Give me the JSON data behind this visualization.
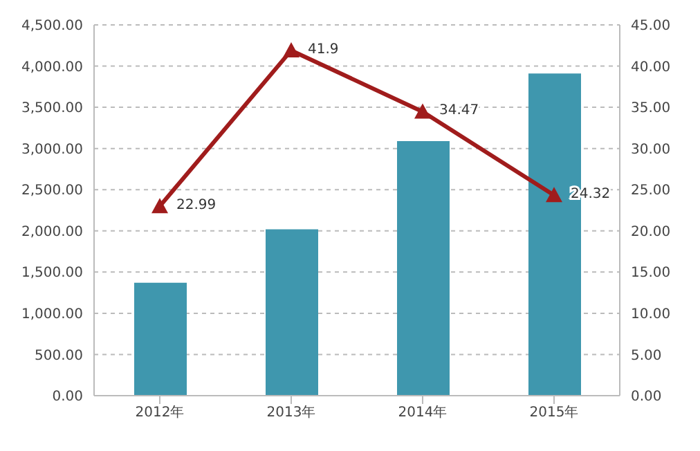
{
  "chart_data": {
    "type": "bar",
    "categories": [
      "2012年",
      "2013年",
      "2014年",
      "2015年"
    ],
    "series": [
      {
        "color": "#3f97ae",
        "values": [
          1370,
          2020,
          3090,
          3910
        ]
      },
      {
        "type": "line",
        "axis": "y2",
        "color": "#a01c1c",
        "values": [
          22.99,
          41.9,
          34.47,
          24.32
        ],
        "value_labels": [
          "22.99",
          "41.9",
          "34.47",
          "24.32"
        ],
        "marker": "triangle"
      }
    ],
    "ylim": [
      0,
      4500
    ],
    "yticks": [
      {
        "value": 0,
        "label": "0.00"
      },
      {
        "value": 500,
        "label": "500.00"
      },
      {
        "value": 1000,
        "label": "1,000.00"
      },
      {
        "value": 1500,
        "label": "1,500.00"
      },
      {
        "value": 2000,
        "label": "2,000.00"
      },
      {
        "value": 2500,
        "label": "2,500.00"
      },
      {
        "value": 3000,
        "label": "3,000.00"
      },
      {
        "value": 3500,
        "label": "3,500.00"
      },
      {
        "value": 4000,
        "label": "4,000.00"
      },
      {
        "value": 4500,
        "label": "4,500.00"
      }
    ],
    "y2lim": [
      0,
      45
    ],
    "y2ticks": [
      {
        "value": 0,
        "label": "0.00"
      },
      {
        "value": 5,
        "label": "5.00"
      },
      {
        "value": 10,
        "label": "10.00"
      },
      {
        "value": 15,
        "label": "15.00"
      },
      {
        "value": 20,
        "label": "20.00"
      },
      {
        "value": 25,
        "label": "25.00"
      },
      {
        "value": 30,
        "label": "30.00"
      },
      {
        "value": 35,
        "label": "35.00"
      },
      {
        "value": 40,
        "label": "40.00"
      },
      {
        "value": 45,
        "label": "45.00"
      }
    ],
    "grid": "y"
  }
}
